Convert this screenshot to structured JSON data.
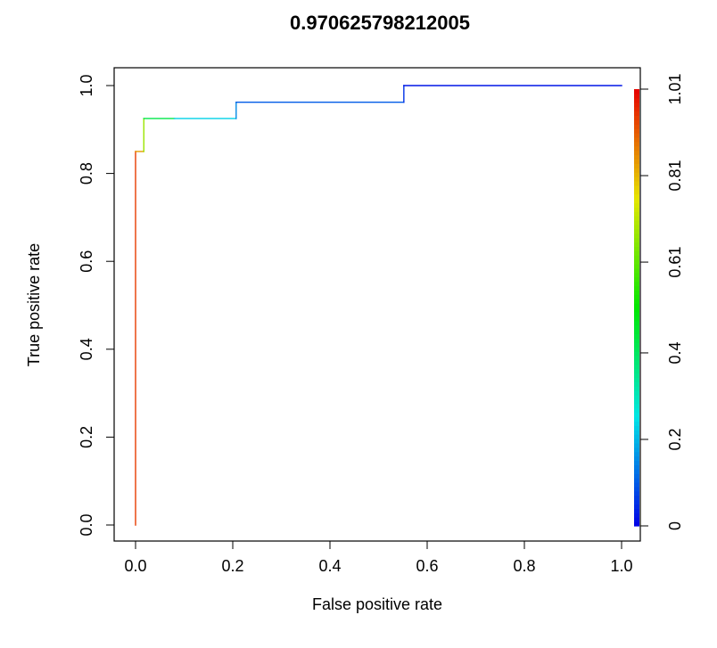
{
  "chart_data": {
    "type": "line",
    "title": "0.970625798212005",
    "xlabel": "False positive rate",
    "ylabel": "True positive rate",
    "xlim": [
      0,
      1
    ],
    "ylim": [
      0,
      1
    ],
    "x_ticks": [
      "0.0",
      "0.2",
      "0.4",
      "0.6",
      "0.8",
      "1.0"
    ],
    "y_ticks": [
      "0.0",
      "0.2",
      "0.4",
      "0.6",
      "0.8",
      "1.0"
    ],
    "grid": false,
    "colorbar": {
      "position": "right",
      "range": [
        0,
        1.01
      ],
      "tick_labels": [
        "0",
        "0.2",
        "0.4",
        "0.61",
        "0.81",
        "1.01"
      ],
      "tick_values": [
        0,
        0.2,
        0.4,
        0.61,
        0.81,
        1.01
      ],
      "colormap": "rainbow"
    },
    "series": [
      {
        "points": [
          {
            "fpr": 0.0,
            "tpr": 0.0,
            "cutoff": 1.01
          },
          {
            "fpr": 0.0,
            "tpr": 0.85,
            "cutoff": 0.88
          },
          {
            "fpr": 0.017,
            "tpr": 0.85,
            "cutoff": 0.8
          },
          {
            "fpr": 0.017,
            "tpr": 0.925,
            "cutoff": 0.55
          },
          {
            "fpr": 0.08,
            "tpr": 0.925,
            "cutoff": 0.3
          },
          {
            "fpr": 0.207,
            "tpr": 0.925,
            "cutoff": 0.16
          },
          {
            "fpr": 0.207,
            "tpr": 0.962,
            "cutoff": 0.14
          },
          {
            "fpr": 0.552,
            "tpr": 0.962,
            "cutoff": 0.06
          },
          {
            "fpr": 0.552,
            "tpr": 1.0,
            "cutoff": 0.05
          },
          {
            "fpr": 1.0,
            "tpr": 1.0,
            "cutoff": 0.0
          }
        ]
      }
    ]
  }
}
